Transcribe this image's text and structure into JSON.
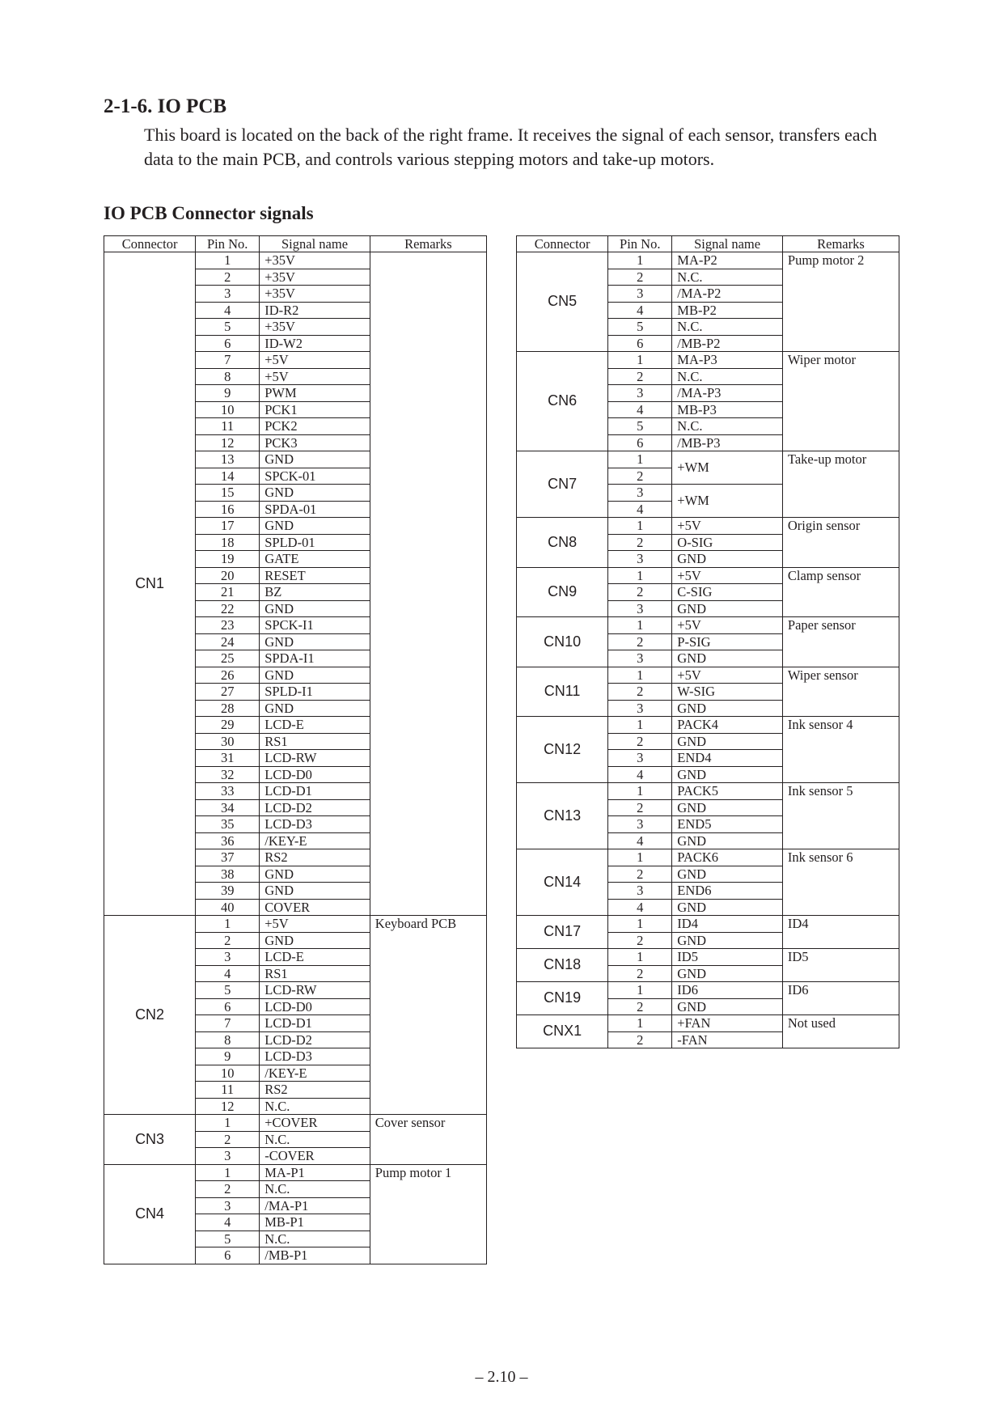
{
  "section_number": "2-1-6.  IO PCB",
  "body_paragraph": "This board is located on the back of the right frame. It receives the signal of each sensor, transfers each data to the main PCB, and controls various stepping motors and take-up motors.",
  "subheading": "IO PCB Connector signals",
  "page_footer": "– 2.10 –",
  "headers": {
    "connector": "Connector",
    "pin": "Pin No.",
    "signal": "Signal name",
    "remarks": "Remarks"
  },
  "left_table": [
    {
      "connector": "CN1",
      "remarks": "",
      "pins": [
        {
          "pin": "1",
          "signal": "+35V"
        },
        {
          "pin": "2",
          "signal": "+35V"
        },
        {
          "pin": "3",
          "signal": "+35V"
        },
        {
          "pin": "4",
          "signal": "ID-R2"
        },
        {
          "pin": "5",
          "signal": "+35V"
        },
        {
          "pin": "6",
          "signal": "ID-W2"
        },
        {
          "pin": "7",
          "signal": "+5V"
        },
        {
          "pin": "8",
          "signal": "+5V"
        },
        {
          "pin": "9",
          "signal": "PWM"
        },
        {
          "pin": "10",
          "signal": "PCK1"
        },
        {
          "pin": "11",
          "signal": "PCK2"
        },
        {
          "pin": "12",
          "signal": "PCK3"
        },
        {
          "pin": "13",
          "signal": "GND"
        },
        {
          "pin": "14",
          "signal": "SPCK-01"
        },
        {
          "pin": "15",
          "signal": "GND"
        },
        {
          "pin": "16",
          "signal": "SPDA-01"
        },
        {
          "pin": "17",
          "signal": "GND"
        },
        {
          "pin": "18",
          "signal": "SPLD-01"
        },
        {
          "pin": "19",
          "signal": "GATE"
        },
        {
          "pin": "20",
          "signal": "RESET"
        },
        {
          "pin": "21",
          "signal": "BZ"
        },
        {
          "pin": "22",
          "signal": "GND"
        },
        {
          "pin": "23",
          "signal": "SPCK-I1"
        },
        {
          "pin": "24",
          "signal": "GND"
        },
        {
          "pin": "25",
          "signal": "SPDA-I1"
        },
        {
          "pin": "26",
          "signal": "GND"
        },
        {
          "pin": "27",
          "signal": "SPLD-I1"
        },
        {
          "pin": "28",
          "signal": "GND"
        },
        {
          "pin": "29",
          "signal": "LCD-E"
        },
        {
          "pin": "30",
          "signal": "RS1"
        },
        {
          "pin": "31",
          "signal": "LCD-RW"
        },
        {
          "pin": "32",
          "signal": "LCD-D0"
        },
        {
          "pin": "33",
          "signal": "LCD-D1"
        },
        {
          "pin": "34",
          "signal": "LCD-D2"
        },
        {
          "pin": "35",
          "signal": "LCD-D3"
        },
        {
          "pin": "36",
          "signal": "/KEY-E"
        },
        {
          "pin": "37",
          "signal": "RS2"
        },
        {
          "pin": "38",
          "signal": "GND"
        },
        {
          "pin": "39",
          "signal": "GND"
        },
        {
          "pin": "40",
          "signal": "COVER"
        }
      ]
    },
    {
      "connector": "CN2",
      "remarks": "Keyboard PCB",
      "pins": [
        {
          "pin": "1",
          "signal": "+5V"
        },
        {
          "pin": "2",
          "signal": "GND"
        },
        {
          "pin": "3",
          "signal": "LCD-E"
        },
        {
          "pin": "4",
          "signal": "RS1"
        },
        {
          "pin": "5",
          "signal": "LCD-RW"
        },
        {
          "pin": "6",
          "signal": "LCD-D0"
        },
        {
          "pin": "7",
          "signal": "LCD-D1"
        },
        {
          "pin": "8",
          "signal": "LCD-D2"
        },
        {
          "pin": "9",
          "signal": "LCD-D3"
        },
        {
          "pin": "10",
          "signal": "/KEY-E"
        },
        {
          "pin": "11",
          "signal": "RS2"
        },
        {
          "pin": "12",
          "signal": "N.C."
        }
      ]
    },
    {
      "connector": "CN3",
      "remarks": "Cover sensor",
      "pins": [
        {
          "pin": "1",
          "signal": "+COVER"
        },
        {
          "pin": "2",
          "signal": "N.C."
        },
        {
          "pin": "3",
          "signal": "-COVER"
        }
      ]
    },
    {
      "connector": "CN4",
      "remarks": "Pump motor 1",
      "pins": [
        {
          "pin": "1",
          "signal": "MA-P1"
        },
        {
          "pin": "2",
          "signal": "N.C."
        },
        {
          "pin": "3",
          "signal": "/MA-P1"
        },
        {
          "pin": "4",
          "signal": "MB-P1"
        },
        {
          "pin": "5",
          "signal": "N.C."
        },
        {
          "pin": "6",
          "signal": "/MB-P1"
        }
      ]
    }
  ],
  "right_table": [
    {
      "connector": "CN5",
      "remarks": "Pump motor 2",
      "pins": [
        {
          "pin": "1",
          "signal": "MA-P2"
        },
        {
          "pin": "2",
          "signal": "N.C."
        },
        {
          "pin": "3",
          "signal": "/MA-P2"
        },
        {
          "pin": "4",
          "signal": "MB-P2"
        },
        {
          "pin": "5",
          "signal": "N.C."
        },
        {
          "pin": "6",
          "signal": "/MB-P2"
        }
      ]
    },
    {
      "connector": "CN6",
      "remarks": "Wiper motor",
      "pins": [
        {
          "pin": "1",
          "signal": "MA-P3"
        },
        {
          "pin": "2",
          "signal": "N.C."
        },
        {
          "pin": "3",
          "signal": "/MA-P3"
        },
        {
          "pin": "4",
          "signal": "MB-P3"
        },
        {
          "pin": "5",
          "signal": "N.C."
        },
        {
          "pin": "6",
          "signal": "/MB-P3"
        }
      ]
    },
    {
      "connector": "CN7",
      "remarks": "Take-up motor",
      "merge_pairs": true,
      "pins": [
        {
          "pin": "1",
          "signal": "+WM"
        },
        {
          "pin": "2",
          "signal": ""
        },
        {
          "pin": "3",
          "signal": "+WM"
        },
        {
          "pin": "4",
          "signal": ""
        }
      ]
    },
    {
      "connector": "CN8",
      "remarks": "Origin sensor",
      "pins": [
        {
          "pin": "1",
          "signal": "+5V"
        },
        {
          "pin": "2",
          "signal": "O-SIG"
        },
        {
          "pin": "3",
          "signal": "GND"
        }
      ]
    },
    {
      "connector": "CN9",
      "remarks": "Clamp sensor",
      "pins": [
        {
          "pin": "1",
          "signal": "+5V"
        },
        {
          "pin": "2",
          "signal": "C-SIG"
        },
        {
          "pin": "3",
          "signal": "GND"
        }
      ]
    },
    {
      "connector": "CN10",
      "remarks": "Paper sensor",
      "pins": [
        {
          "pin": "1",
          "signal": "+5V"
        },
        {
          "pin": "2",
          "signal": "P-SIG"
        },
        {
          "pin": "3",
          "signal": "GND"
        }
      ]
    },
    {
      "connector": "CN11",
      "remarks": "Wiper sensor",
      "pins": [
        {
          "pin": "1",
          "signal": "+5V"
        },
        {
          "pin": "2",
          "signal": "W-SIG"
        },
        {
          "pin": "3",
          "signal": "GND"
        }
      ]
    },
    {
      "connector": "CN12",
      "remarks": "Ink sensor 4",
      "pins": [
        {
          "pin": "1",
          "signal": "PACK4"
        },
        {
          "pin": "2",
          "signal": "GND"
        },
        {
          "pin": "3",
          "signal": "END4"
        },
        {
          "pin": "4",
          "signal": "GND"
        }
      ]
    },
    {
      "connector": "CN13",
      "remarks": "Ink sensor 5",
      "pins": [
        {
          "pin": "1",
          "signal": "PACK5"
        },
        {
          "pin": "2",
          "signal": "GND"
        },
        {
          "pin": "3",
          "signal": "END5"
        },
        {
          "pin": "4",
          "signal": "GND"
        }
      ]
    },
    {
      "connector": "CN14",
      "remarks": "Ink sensor 6",
      "pins": [
        {
          "pin": "1",
          "signal": "PACK6"
        },
        {
          "pin": "2",
          "signal": "GND"
        },
        {
          "pin": "3",
          "signal": "END6"
        },
        {
          "pin": "4",
          "signal": "GND"
        }
      ]
    },
    {
      "connector": "CN17",
      "remarks": "ID4",
      "pins": [
        {
          "pin": "1",
          "signal": "ID4"
        },
        {
          "pin": "2",
          "signal": "GND"
        }
      ]
    },
    {
      "connector": "CN18",
      "remarks": "ID5",
      "pins": [
        {
          "pin": "1",
          "signal": "ID5"
        },
        {
          "pin": "2",
          "signal": "GND"
        }
      ]
    },
    {
      "connector": "CN19",
      "remarks": "ID6",
      "pins": [
        {
          "pin": "1",
          "signal": "ID6"
        },
        {
          "pin": "2",
          "signal": "GND"
        }
      ]
    },
    {
      "connector": "CNX1",
      "remarks": "Not used",
      "pins": [
        {
          "pin": "1",
          "signal": "+FAN"
        },
        {
          "pin": "2",
          "signal": "-FAN"
        }
      ]
    }
  ]
}
